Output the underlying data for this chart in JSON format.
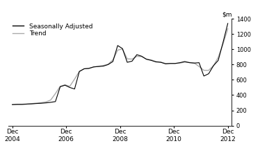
{
  "ylim": [
    0,
    1400
  ],
  "yticks": [
    0,
    200,
    400,
    600,
    800,
    1000,
    1200,
    1400
  ],
  "xtick_labels": [
    "Dec\n2004",
    "Dec\n2006",
    "Dec\n2008",
    "Dec\n2010",
    "Dec\n2012"
  ],
  "legend_labels": [
    "Seasonally Adjusted",
    "Trend"
  ],
  "sa_color": "#000000",
  "trend_color": "#aaaaaa",
  "background_color": "#ffffff",
  "seasonally_adjusted": [
    275,
    278,
    278,
    282,
    285,
    290,
    293,
    298,
    305,
    315,
    510,
    530,
    500,
    480,
    710,
    745,
    750,
    770,
    775,
    780,
    800,
    840,
    1050,
    1010,
    830,
    845,
    930,
    910,
    870,
    855,
    835,
    830,
    810,
    815,
    815,
    825,
    840,
    825,
    820,
    825,
    650,
    680,
    785,
    855,
    1090,
    1340
  ],
  "trend": [
    275,
    278,
    280,
    283,
    288,
    294,
    300,
    310,
    335,
    420,
    515,
    535,
    515,
    610,
    710,
    745,
    752,
    768,
    778,
    788,
    805,
    862,
    990,
    1005,
    875,
    872,
    908,
    905,
    873,
    862,
    840,
    833,
    815,
    815,
    815,
    820,
    832,
    828,
    820,
    775,
    725,
    725,
    785,
    895,
    1070,
    1270
  ],
  "n_points": 46,
  "x_start_year": 2004.917,
  "x_end_year": 2012.917,
  "xtick_positions": [
    2004.917,
    2006.917,
    2008.917,
    2010.917,
    2012.917
  ]
}
